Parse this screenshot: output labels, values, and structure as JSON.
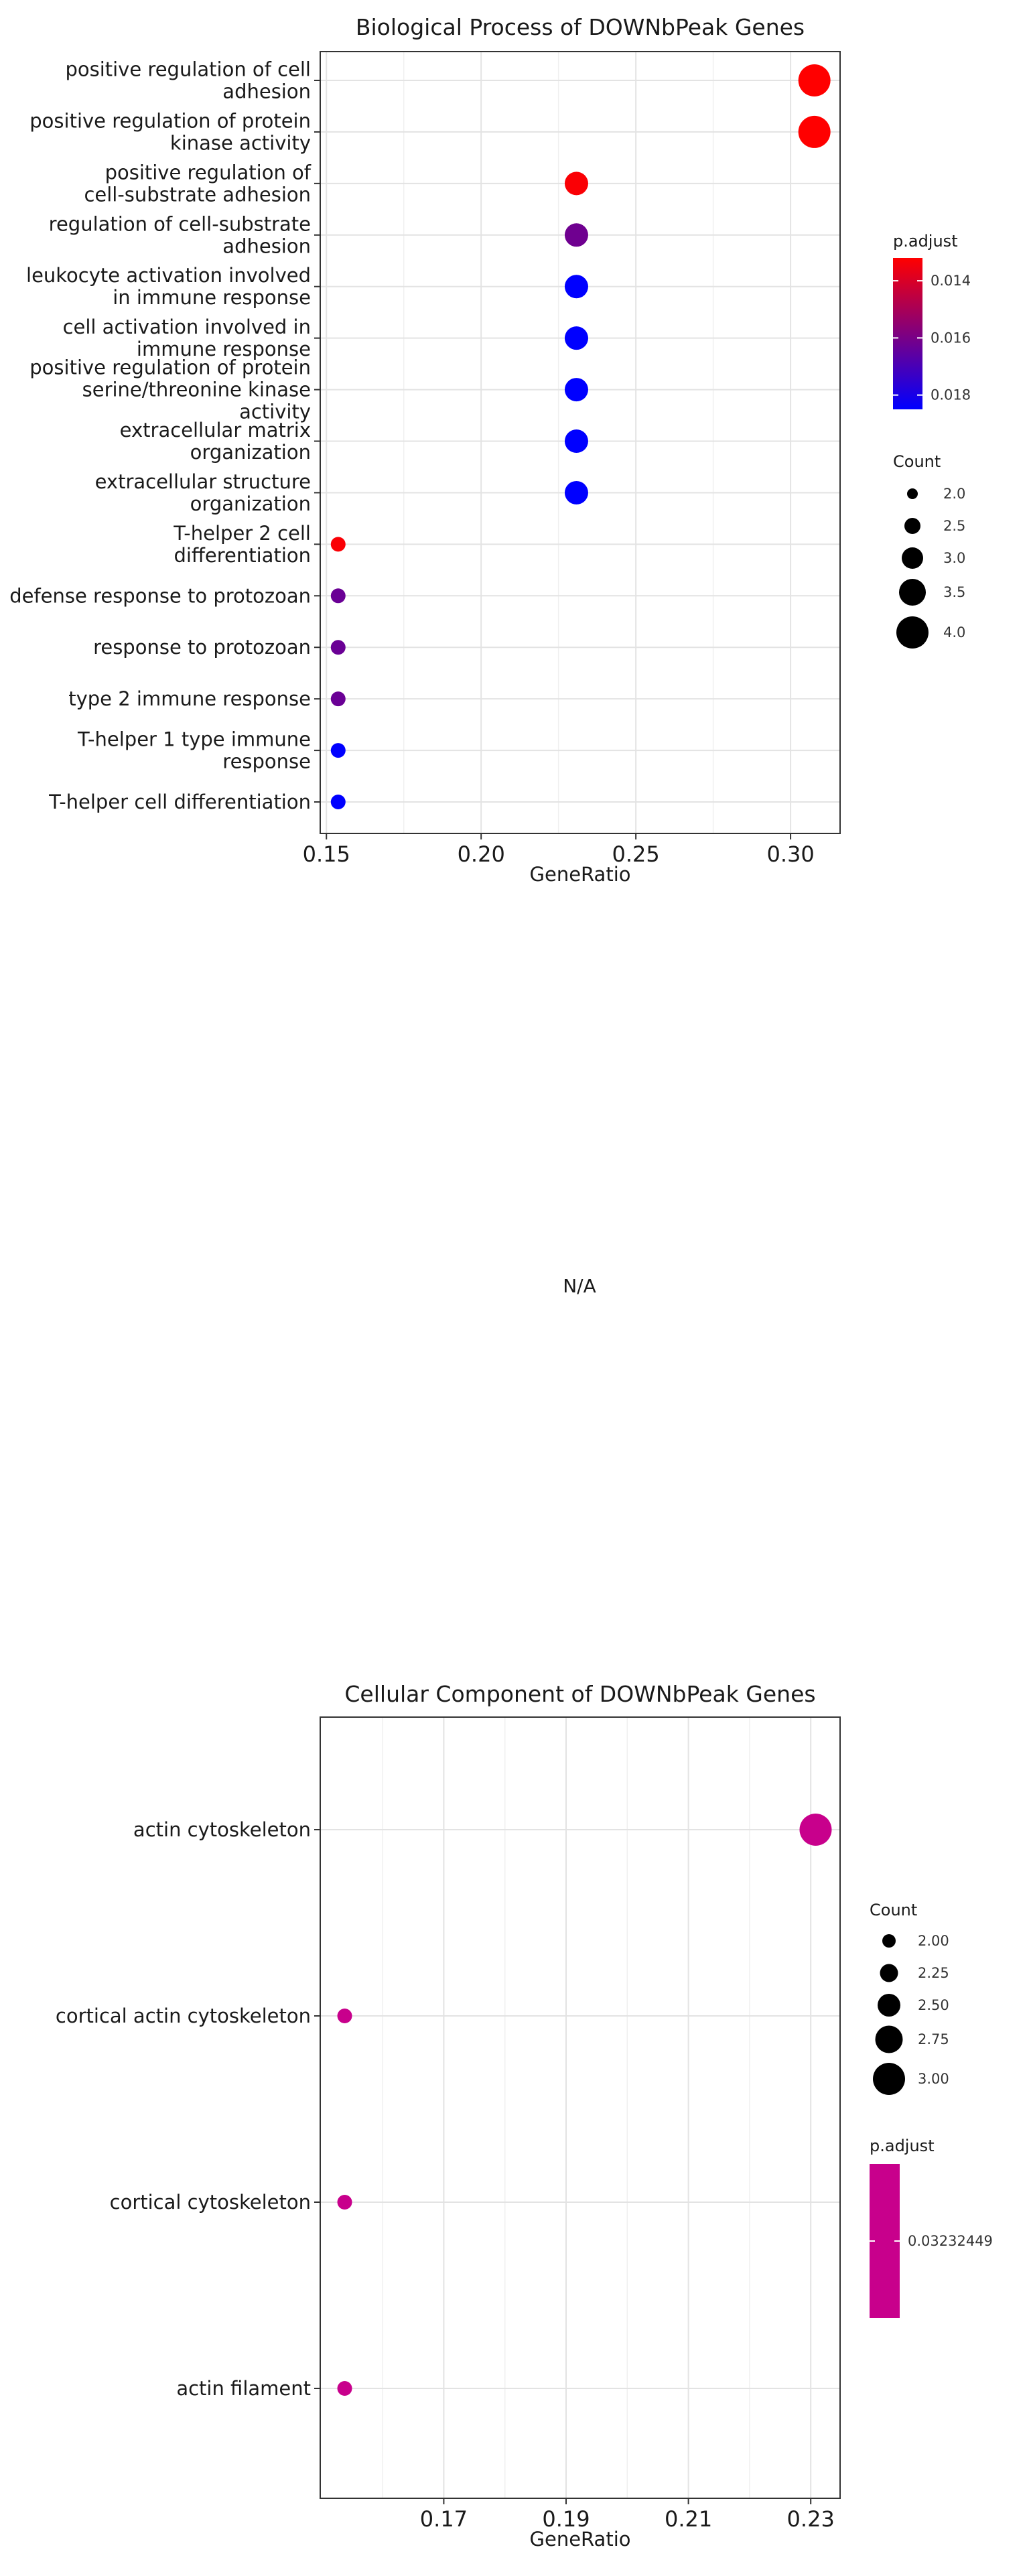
{
  "middle_label": "N/A",
  "chart_data": [
    {
      "type": "scatter",
      "title": "Biological Process of DOWNbPeak Genes",
      "xlabel": "GeneRatio",
      "ylabel": "",
      "xlim": [
        0.148,
        0.316
      ],
      "xticks": [
        "0.15",
        "0.20",
        "0.25",
        "0.30"
      ],
      "xtick_values": [
        0.15,
        0.2,
        0.25,
        0.3
      ],
      "grid": true,
      "categories": [
        [
          "positive regulation of cell",
          "adhesion"
        ],
        [
          "positive regulation of protein",
          "kinase activity"
        ],
        [
          "positive regulation of",
          "cell-substrate adhesion"
        ],
        [
          "regulation of cell-substrate",
          "adhesion"
        ],
        [
          "leukocyte activation involved",
          "in immune response"
        ],
        [
          "cell activation involved in",
          "immune response"
        ],
        [
          "positive regulation of protein",
          "serine/threonine kinase",
          "activity"
        ],
        [
          "extracellular matrix",
          "organization"
        ],
        [
          "extracellular structure",
          "organization"
        ],
        [
          "T-helper 2 cell",
          "differentiation"
        ],
        [
          "defense response to protozoan"
        ],
        [
          "response to protozoan"
        ],
        [
          "type 2 immune response"
        ],
        [
          "T-helper 1 type immune",
          "response"
        ],
        [
          "T-helper cell differentiation"
        ]
      ],
      "x": [
        0.3077,
        0.3077,
        0.2308,
        0.2308,
        0.2308,
        0.2308,
        0.2308,
        0.2308,
        0.2308,
        0.1538,
        0.1538,
        0.1538,
        0.1538,
        0.1538,
        0.1538
      ],
      "count": [
        4,
        4,
        3,
        3,
        3,
        3,
        3,
        3,
        3,
        2,
        2,
        2,
        2,
        2,
        2
      ],
      "p_adjust": [
        0.0132,
        0.0132,
        0.0133,
        0.0162,
        0.0185,
        0.0185,
        0.0185,
        0.0185,
        0.0185,
        0.0133,
        0.0163,
        0.0163,
        0.0163,
        0.0185,
        0.0185
      ],
      "legend_placement": "right",
      "color_legend": {
        "title": "p.adjust",
        "range": [
          0.0132,
          0.0185
        ],
        "low_color": "#ff0000",
        "high_color": "#0000ff",
        "ticks": [
          "0.014",
          "0.016",
          "0.018"
        ],
        "tick_values": [
          0.014,
          0.016,
          0.018
        ]
      },
      "size_legend": {
        "title": "Count",
        "labels": [
          "2.0",
          "2.5",
          "3.0",
          "3.5",
          "4.0"
        ],
        "values": [
          2.0,
          2.5,
          3.0,
          3.5,
          4.0
        ],
        "range": [
          2,
          4
        ]
      }
    },
    {
      "type": "scatter",
      "title": "Cellular Component of DOWNbPeak Genes",
      "xlabel": "GeneRatio",
      "ylabel": "",
      "xlim": [
        0.1498,
        0.2348
      ],
      "xticks": [
        "0.17",
        "0.19",
        "0.21",
        "0.23"
      ],
      "xtick_values": [
        0.17,
        0.19,
        0.21,
        0.23
      ],
      "grid": true,
      "categories": [
        [
          "actin cytoskeleton"
        ],
        [
          "cortical actin cytoskeleton"
        ],
        [
          "cortical cytoskeleton"
        ],
        [
          "actin filament"
        ]
      ],
      "x": [
        0.2308,
        0.1538,
        0.1538,
        0.1538
      ],
      "count": [
        3,
        2,
        2,
        2
      ],
      "p_adjust": [
        0.03232449,
        0.03232449,
        0.03232449,
        0.03232449
      ],
      "point_color": "#c8008c",
      "legend_placement": "right",
      "size_legend": {
        "title": "Count",
        "labels": [
          "2.00",
          "2.25",
          "2.50",
          "2.75",
          "3.00"
        ],
        "values": [
          2.0,
          2.25,
          2.5,
          2.75,
          3.0
        ],
        "range": [
          2,
          3
        ]
      },
      "color_legend": {
        "title": "p.adjust",
        "ticks": [
          "0.03232449"
        ],
        "color": "#c8008c"
      }
    }
  ]
}
